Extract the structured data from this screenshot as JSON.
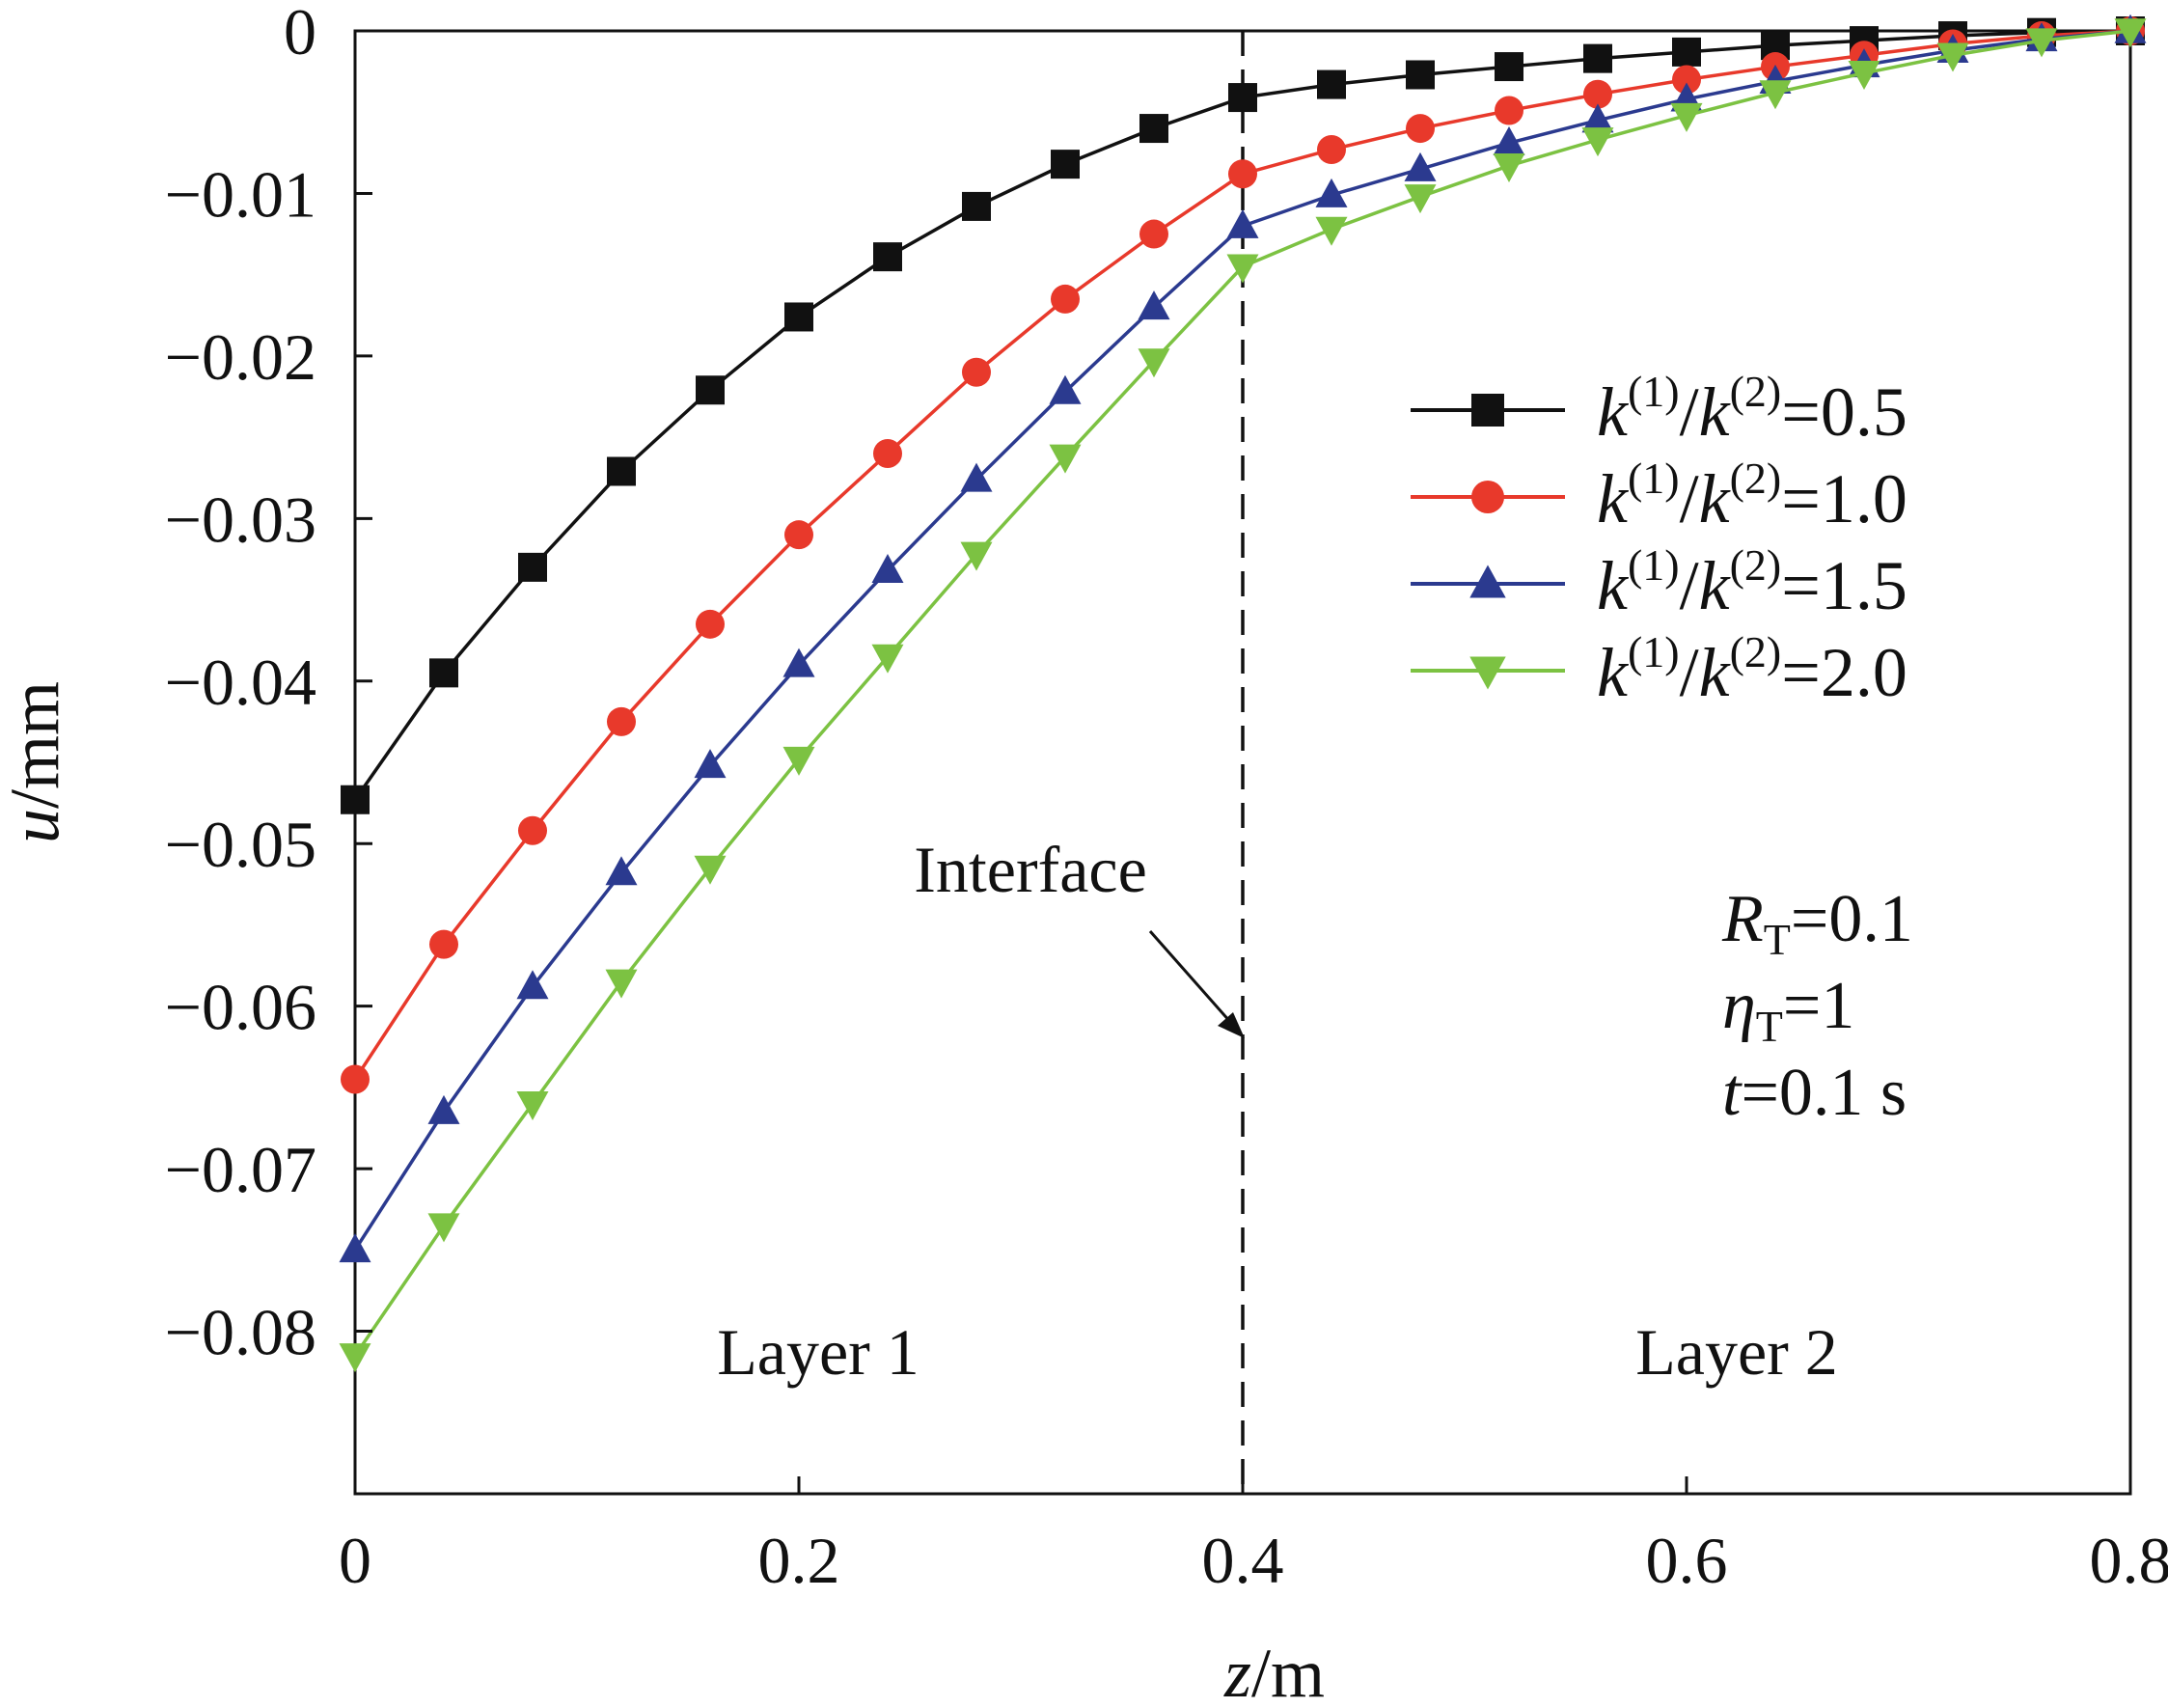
{
  "chart_data": {
    "type": "line",
    "xlabel": {
      "var": "z",
      "unit": "/m"
    },
    "ylabel": {
      "var": "u",
      "unit": "/mm"
    },
    "xlim": [
      0,
      0.8
    ],
    "ylim": [
      -0.09,
      0
    ],
    "x_ticks": [
      0,
      0.2,
      0.4,
      0.6,
      0.8
    ],
    "x_tick_labels": [
      "0",
      "0.2",
      "0.4",
      "0.6",
      "0.8"
    ],
    "y_ticks": [
      0,
      -0.01,
      -0.02,
      -0.03,
      -0.04,
      -0.05,
      -0.06,
      -0.07,
      -0.08
    ],
    "y_tick_labels": [
      "0",
      "−0.01",
      "−0.02",
      "−0.03",
      "−0.04",
      "−0.05",
      "−0.06",
      "−0.07",
      "−0.08"
    ],
    "grid": false,
    "legend_position": "top-right",
    "x": [
      0,
      0.04,
      0.08,
      0.12,
      0.16,
      0.2,
      0.24,
      0.28,
      0.32,
      0.36,
      0.4,
      0.44,
      0.48,
      0.52,
      0.56,
      0.6,
      0.64,
      0.68,
      0.72,
      0.76,
      0.8
    ],
    "series": [
      {
        "name": "k(1)/k(2)=0.5",
        "label": {
          "value": "0.5"
        },
        "color": "#111111",
        "marker": "square",
        "values": [
          -0.0473,
          -0.0395,
          -0.033,
          -0.0271,
          -0.0221,
          -0.0176,
          -0.0139,
          -0.0108,
          -0.0082,
          -0.006,
          -0.0041,
          -0.0033,
          -0.0027,
          -0.0022,
          -0.0017,
          -0.0013,
          -0.0009,
          -0.0006,
          -0.0003,
          -0.0001,
          0
        ]
      },
      {
        "name": "k(1)/k(2)=1.0",
        "label": {
          "value": "1.0"
        },
        "color": "#e8392b",
        "marker": "circle",
        "values": [
          -0.0645,
          -0.0562,
          -0.0492,
          -0.0425,
          -0.0365,
          -0.031,
          -0.026,
          -0.021,
          -0.0165,
          -0.0125,
          -0.0088,
          -0.0073,
          -0.006,
          -0.0049,
          -0.0039,
          -0.003,
          -0.0022,
          -0.0015,
          -0.0008,
          -0.0003,
          0
        ]
      },
      {
        "name": "k(1)/k(2)=1.5",
        "label": {
          "value": "1.5"
        },
        "color": "#2b3a8f",
        "marker": "triangle-up",
        "values": [
          -0.075,
          -0.0665,
          -0.0588,
          -0.0518,
          -0.0452,
          -0.039,
          -0.0332,
          -0.0276,
          -0.0222,
          -0.017,
          -0.012,
          -0.0101,
          -0.0085,
          -0.0069,
          -0.0055,
          -0.0042,
          -0.0031,
          -0.0021,
          -0.0012,
          -0.0005,
          0
        ]
      },
      {
        "name": "k(1)/k(2)=2.0",
        "label": {
          "value": "2.0"
        },
        "color": "#7cc242",
        "marker": "triangle-down",
        "values": [
          -0.0815,
          -0.0735,
          -0.066,
          -0.0585,
          -0.0515,
          -0.0448,
          -0.0385,
          -0.0322,
          -0.0262,
          -0.0203,
          -0.0145,
          -0.0122,
          -0.0102,
          -0.0083,
          -0.0067,
          -0.0052,
          -0.0038,
          -0.0026,
          -0.0015,
          -0.0006,
          0
        ]
      }
    ],
    "interface": {
      "z": 0.4,
      "label": "Interface"
    },
    "layer_labels": [
      "Layer 1",
      "Layer 2"
    ],
    "parameters": [
      {
        "sym": "R",
        "sub": "T",
        "value": "=0.1"
      },
      {
        "sym": "η",
        "sub": "T",
        "value": "=1"
      },
      {
        "sym": "t",
        "sub": "",
        "value": "=0.1 s"
      }
    ]
  }
}
